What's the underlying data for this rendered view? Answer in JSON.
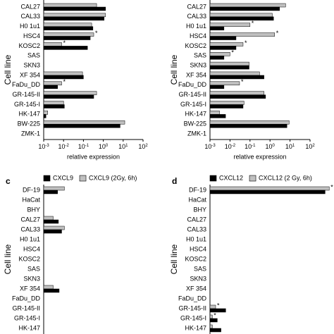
{
  "chart_data": [
    {
      "type": "hbar",
      "log_x": true,
      "y_label": "Cell line",
      "x_label": "relative expression",
      "categories": [
        "CAL27",
        "CAL33",
        "H0 1u1",
        "HSC4",
        "KOSC2",
        "SAS",
        "SKN3",
        "XF 354",
        "FaDu_DD",
        "GR-145-II",
        "GR-145-I",
        "HK-147",
        "BW-225",
        "ZMK-1"
      ],
      "xlim": [
        0.001,
        100
      ],
      "xticks": [
        {
          "value": 0.001,
          "label": "10-3"
        },
        {
          "value": 0.01,
          "label": "10-2"
        },
        {
          "value": 0.1,
          "label": "10-1"
        },
        {
          "value": 1,
          "label": "100"
        },
        {
          "value": 10,
          "label": "101"
        },
        {
          "value": 100,
          "label": "102"
        }
      ],
      "series": [
        {
          "color": "#c0c0c0",
          "values": [
            0.46,
            1.3,
            0.26,
            0.33,
            0.008,
            null,
            null,
            0.09,
            0.008,
            0.46,
            0.01,
            0.0016,
            12,
            null
          ],
          "marks": [
            null,
            null,
            null,
            "*",
            "*",
            null,
            null,
            null,
            "*",
            null,
            null,
            null,
            null,
            null
          ]
        },
        {
          "color": "#000000",
          "values": [
            1.3,
            1.1,
            0.3,
            0.22,
            0.16,
            null,
            null,
            0.1,
            0.005,
            0.33,
            0.011,
            0.0013,
            7,
            null
          ]
        }
      ]
    },
    {
      "type": "hbar",
      "log_x": true,
      "y_label": "Cell line",
      "x_label": "relative expression",
      "categories": [
        "CAL27",
        "CAL33",
        "H0 1u1",
        "HSC4",
        "KOSC2",
        "SAS",
        "SKN3",
        "XF 354",
        "FaDu_DD",
        "GR-145-II",
        "GR-145-I",
        "HK-147",
        "BW-225",
        "ZMK-1"
      ],
      "xlim": [
        0.001,
        100
      ],
      "xticks": [
        {
          "value": 0.001,
          "label": "10-3"
        },
        {
          "value": 0.01,
          "label": "10-2"
        },
        {
          "value": 0.1,
          "label": "10-1"
        },
        {
          "value": 1,
          "label": "100"
        },
        {
          "value": 10,
          "label": "101"
        },
        {
          "value": 100,
          "label": "102"
        }
      ],
      "series": [
        {
          "color": "#c0c0c0",
          "values": [
            6,
            1.3,
            0.1,
            1.7,
            0.045,
            0.01,
            0.09,
            0.3,
            0.03,
            0.5,
            0.05,
            0.003,
            9,
            null
          ],
          "marks": [
            null,
            null,
            "*",
            "*",
            "*",
            "*",
            null,
            null,
            "*",
            null,
            null,
            null,
            null,
            null
          ]
        },
        {
          "color": "#000000",
          "values": [
            3,
            1.5,
            0.005,
            0.02,
            0.02,
            0.005,
            0.09,
            0.5,
            0.005,
            0.6,
            0.045,
            0.006,
            7,
            null
          ]
        }
      ]
    },
    {
      "type": "hbar",
      "log_x": true,
      "panel": "c",
      "y_label": "Cell line",
      "categories": [
        "DF-19",
        "HaCat",
        "BHY",
        "CAL27",
        "CAL33",
        "H0 1u1",
        "HSC4",
        "KOSC2",
        "SAS",
        "SKN3",
        "XF 354",
        "FaDu_DD",
        "GR-145-II",
        "GR-145-I",
        "HK-147"
      ],
      "xlim": [
        0.001,
        100
      ],
      "series": [
        {
          "name": "CXCL9",
          "color": "#000000",
          "values": [
            0.005,
            null,
            null,
            0.0055,
            0.008,
            null,
            null,
            null,
            null,
            null,
            0.006,
            null,
            null,
            null,
            null
          ]
        },
        {
          "name": "CXCL9 (2Gy, 6h)",
          "color": "#c0c0c0",
          "values": [
            0.011,
            null,
            null,
            0.003,
            0.011,
            null,
            null,
            null,
            null,
            null,
            0.003,
            null,
            null,
            null,
            null
          ]
        }
      ]
    },
    {
      "type": "hbar",
      "log_x": true,
      "panel": "d",
      "y_label": "Cell line",
      "categories": [
        "DF-19",
        "HaCat",
        "BHY",
        "CAL27",
        "CAL33",
        "H0 1u1",
        "HSC4",
        "KOSC2",
        "SAS",
        "SKN3",
        "XF 354",
        "FaDu_DD",
        "GR-145-II",
        "GR-145-I",
        "HK-147"
      ],
      "xlim": [
        0.001,
        1000
      ],
      "series": [
        {
          "name": "CXCL12",
          "color": "#000000",
          "values": [
            500,
            null,
            null,
            null,
            null,
            null,
            null,
            null,
            null,
            null,
            null,
            null,
            0.006,
            0.0023,
            0.0035
          ]
        },
        {
          "name": "CXCL12 (2 Gy, 6h)",
          "color": "#c0c0c0",
          "values": [
            800,
            null,
            null,
            null,
            null,
            null,
            null,
            null,
            null,
            null,
            null,
            null,
            0.0019,
            0.0013,
            0.0013
          ],
          "marks": [
            "*",
            null,
            null,
            null,
            null,
            null,
            null,
            null,
            null,
            null,
            null,
            null,
            "*",
            "*",
            null
          ]
        }
      ]
    }
  ]
}
